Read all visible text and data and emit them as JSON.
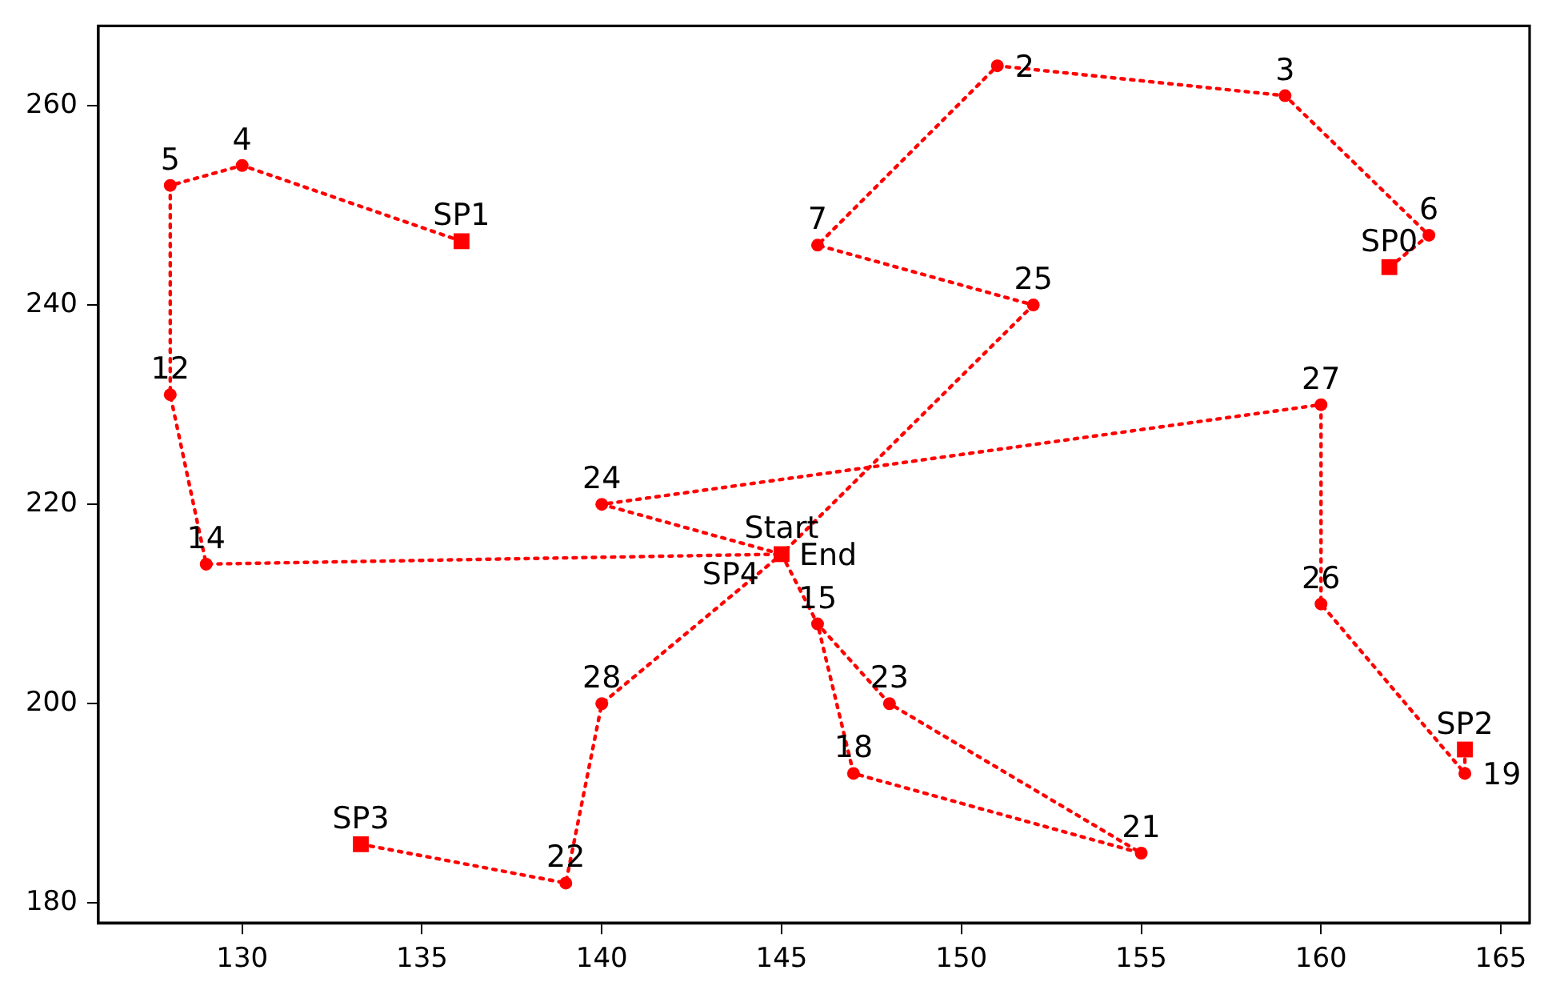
{
  "chart_data": {
    "type": "line",
    "xlim": [
      126.0,
      165.8
    ],
    "ylim": [
      178,
      268
    ],
    "xticks": [
      130,
      135,
      140,
      145,
      150,
      155,
      160,
      165
    ],
    "yticks": [
      180,
      200,
      220,
      240,
      260
    ],
    "grid": false,
    "series": [
      {
        "type": "line",
        "color": "#ff0000",
        "marker": "none",
        "line_style": "dotted",
        "x": [
          136.1,
          130,
          128,
          128,
          129,
          145
        ],
        "values": [
          246.4,
          254,
          252,
          231,
          214,
          215
        ]
      },
      {
        "type": "line",
        "color": "#ff0000",
        "marker": "none",
        "line_style": "dotted",
        "x": [
          161.9,
          163,
          159,
          151,
          146,
          152,
          145
        ],
        "values": [
          243.8,
          247,
          261,
          264,
          246,
          240,
          215
        ]
      },
      {
        "type": "line",
        "color": "#ff0000",
        "marker": "none",
        "line_style": "dotted",
        "x": [
          164,
          164,
          160,
          160,
          140,
          145
        ],
        "values": [
          195.4,
          193,
          210,
          230,
          220,
          215
        ]
      },
      {
        "type": "line",
        "color": "#ff0000",
        "marker": "none",
        "line_style": "dotted",
        "x": [
          133.3,
          139,
          140,
          145
        ],
        "values": [
          185.9,
          182,
          200,
          215
        ]
      },
      {
        "type": "line",
        "color": "#ff0000",
        "marker": "none",
        "line_style": "dotted",
        "x": [
          145,
          146,
          148,
          155,
          147,
          146
        ],
        "values": [
          215,
          208,
          200,
          185,
          193,
          208
        ]
      },
      {
        "type": "scatter",
        "color": "#ff0000",
        "marker": "circle",
        "x": [
          151,
          159,
          130,
          128,
          163,
          146,
          128,
          129,
          146,
          147,
          164,
          155,
          139,
          148,
          140,
          152,
          160,
          160,
          140
        ],
        "values": [
          264,
          261,
          254,
          252,
          247,
          246,
          231,
          214,
          208,
          193,
          193,
          185,
          182,
          200,
          220,
          240,
          210,
          230,
          200
        ]
      },
      {
        "type": "scatter",
        "color": "#ff0000",
        "marker": "square",
        "x": [
          161.9,
          136.1,
          164,
          133.3,
          145
        ],
        "values": [
          243.8,
          246.4,
          195.4,
          185.9,
          215
        ]
      }
    ],
    "annotations": [
      {
        "text": "SP0",
        "x": 161.9,
        "y": 243.8
      },
      {
        "text": "SP1",
        "x": 136.1,
        "y": 246.4
      },
      {
        "text": "SP2",
        "x": 164,
        "y": 195.4
      },
      {
        "text": "SP3",
        "x": 133.3,
        "y": 185.9
      },
      {
        "text": "Start",
        "x": 145,
        "y": 215
      },
      {
        "text": "End",
        "x": 145,
        "y": 215
      },
      {
        "text": "SP4",
        "x": 145,
        "y": 215
      },
      {
        "text": "2",
        "x": 151,
        "y": 264
      },
      {
        "text": "3",
        "x": 159,
        "y": 261
      },
      {
        "text": "4",
        "x": 130,
        "y": 254
      },
      {
        "text": "5",
        "x": 128,
        "y": 252
      },
      {
        "text": "6",
        "x": 163,
        "y": 247
      },
      {
        "text": "7",
        "x": 146,
        "y": 246
      },
      {
        "text": "12",
        "x": 128,
        "y": 231
      },
      {
        "text": "14",
        "x": 129,
        "y": 214
      },
      {
        "text": "15",
        "x": 146,
        "y": 208
      },
      {
        "text": "18",
        "x": 147,
        "y": 193
      },
      {
        "text": "19",
        "x": 164,
        "y": 193
      },
      {
        "text": "21",
        "x": 155,
        "y": 185
      },
      {
        "text": "22",
        "x": 139,
        "y": 182
      },
      {
        "text": "23",
        "x": 148,
        "y": 200
      },
      {
        "text": "24",
        "x": 140,
        "y": 220
      },
      {
        "text": "25",
        "x": 152,
        "y": 240
      },
      {
        "text": "26",
        "x": 160,
        "y": 210
      },
      {
        "text": "27",
        "x": 160,
        "y": 230
      },
      {
        "text": "28",
        "x": 140,
        "y": 200
      }
    ]
  }
}
